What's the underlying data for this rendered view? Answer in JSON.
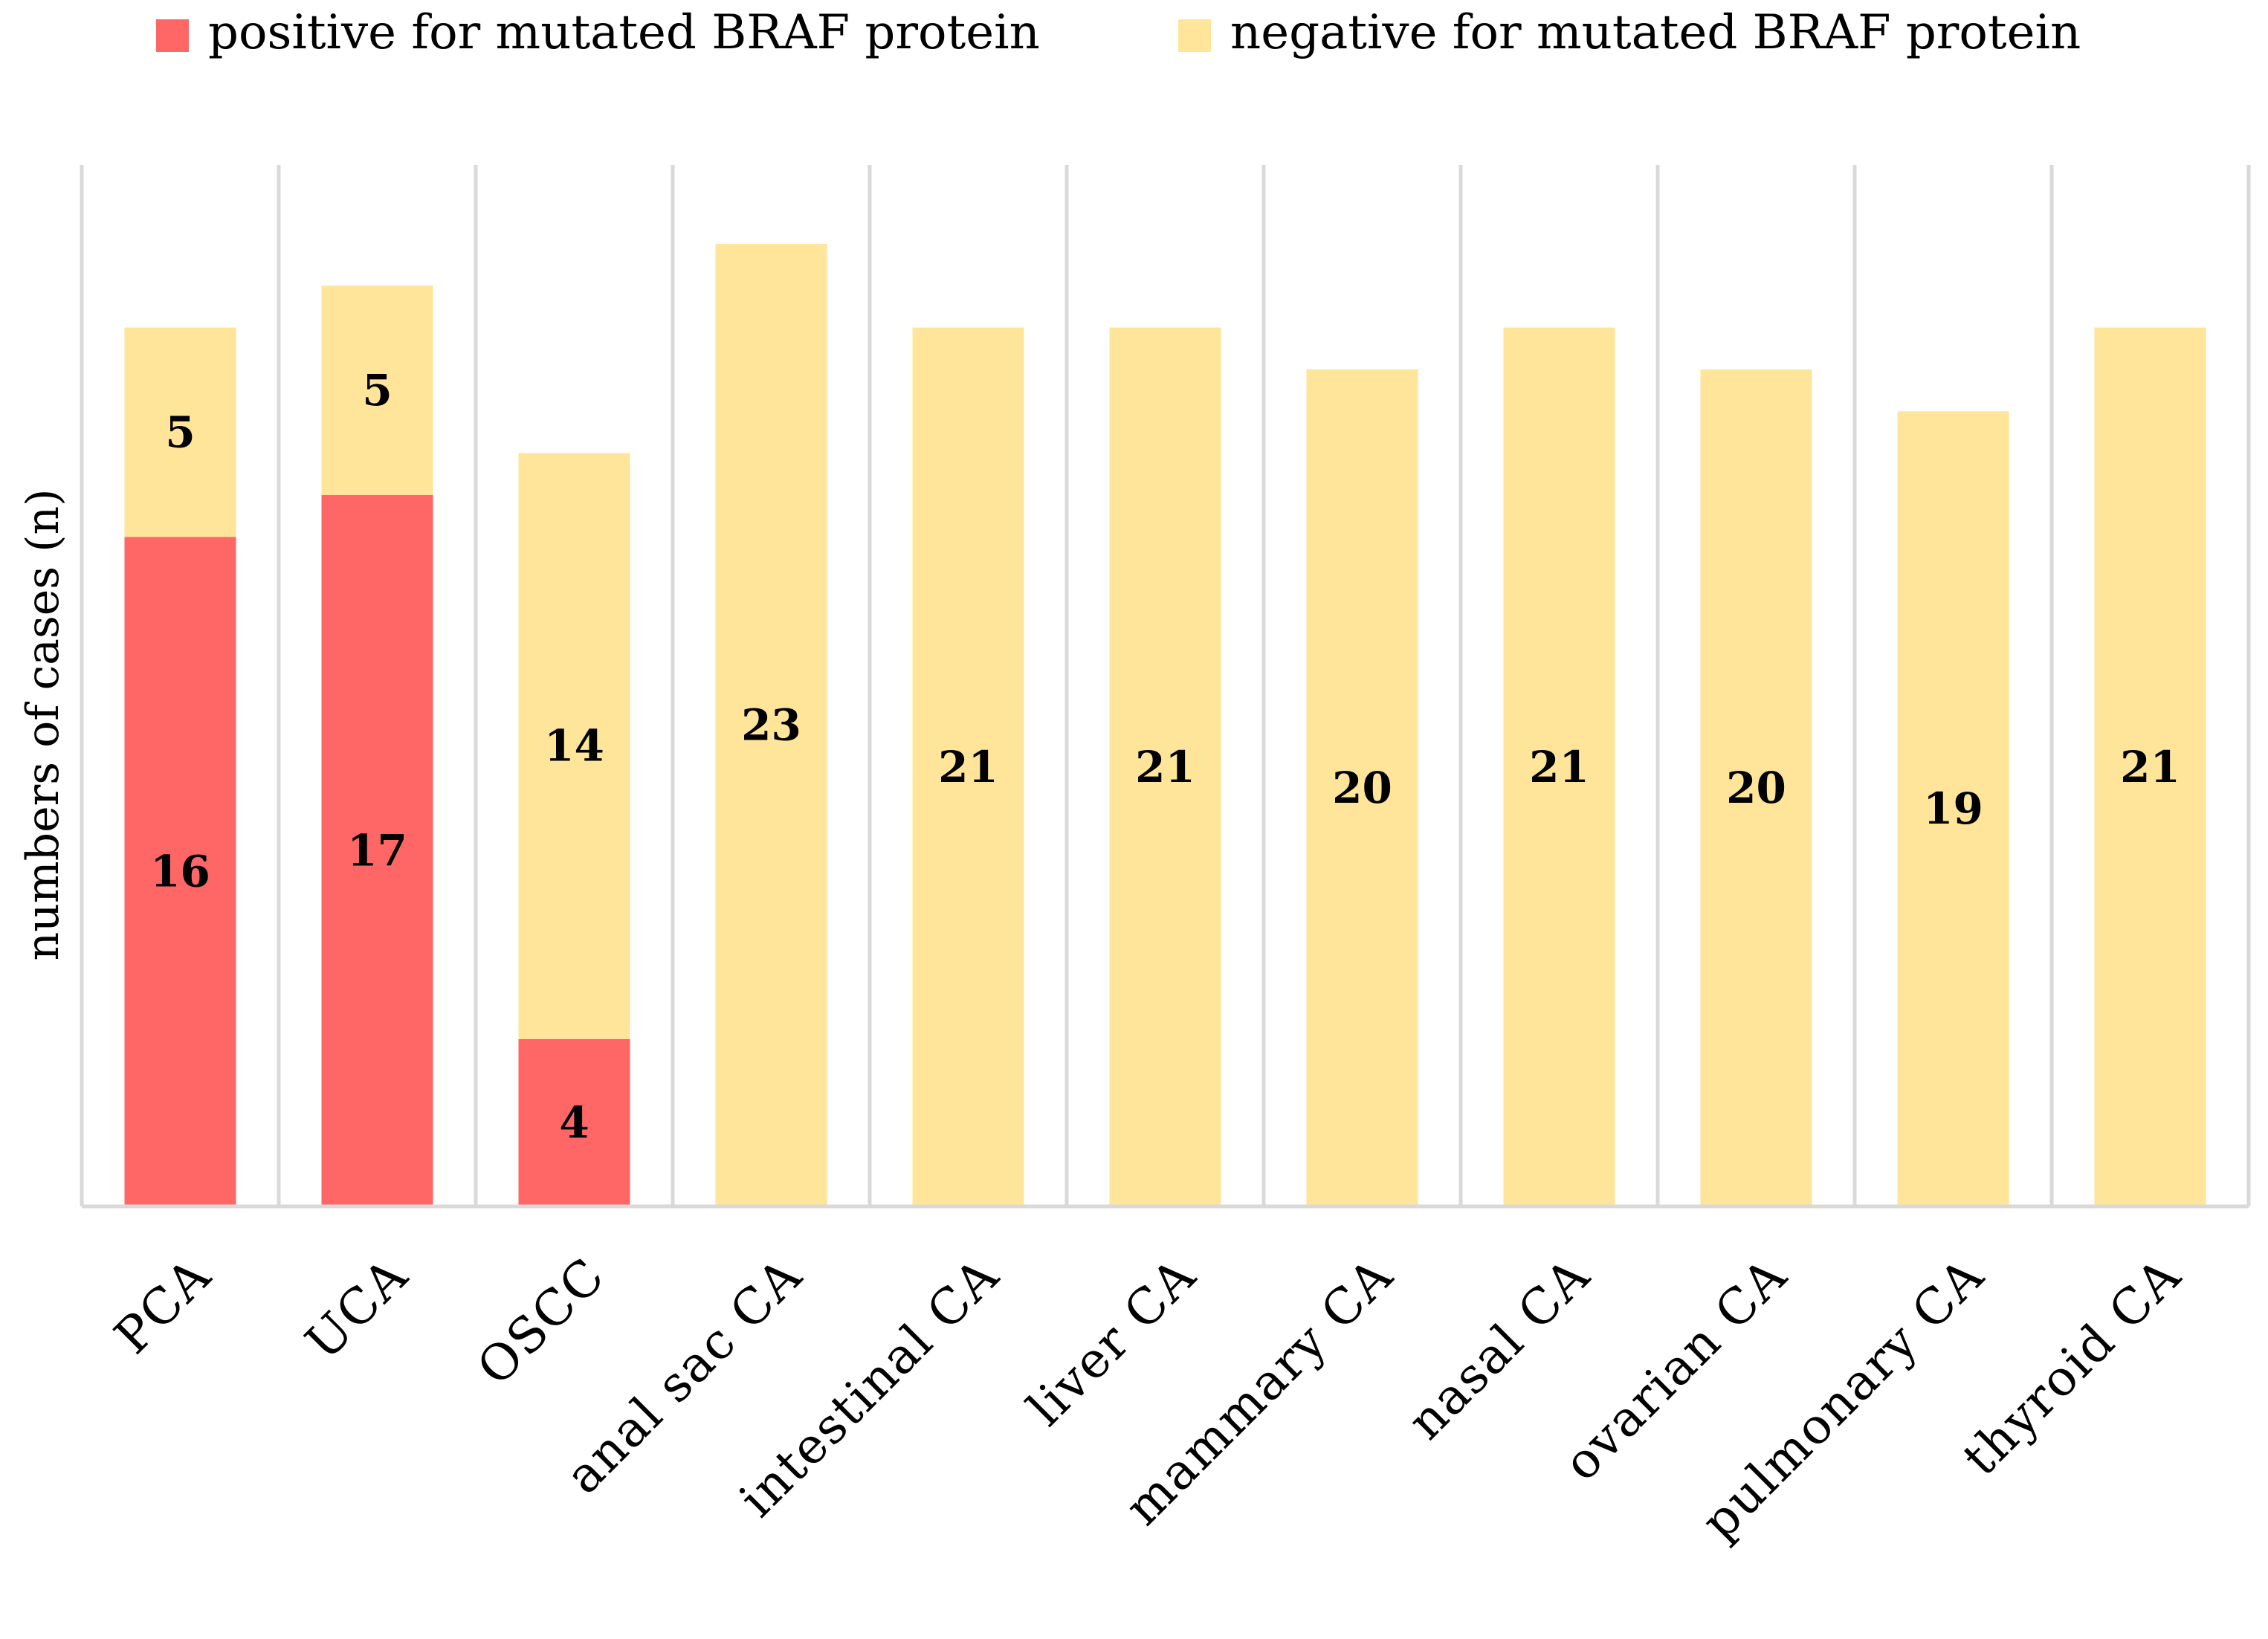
{
  "chart_data": {
    "type": "bar",
    "stacked": true,
    "title": "",
    "xlabel": "",
    "ylabel": "numbers of cases (n)",
    "ylim": [
      0,
      23
    ],
    "grid": "vertical separators between categories",
    "legend": "top",
    "categories": [
      "PCA",
      "UCA",
      "OSCC",
      "anal sac CA",
      "intestinal CA",
      "liver CA",
      "mammary CA",
      "nasal CA",
      "ovarian CA",
      "pulmonary CA",
      "thyroid CA"
    ],
    "series": [
      {
        "name": "positive for mutated BRAF protein",
        "color": "#ff6666",
        "values": [
          16,
          17,
          4,
          0,
          0,
          0,
          0,
          0,
          0,
          0,
          0
        ]
      },
      {
        "name": "negative for mutated BRAF protein",
        "color": "#fee599",
        "values": [
          5,
          5,
          14,
          23,
          21,
          21,
          20,
          21,
          20,
          19,
          21
        ]
      }
    ],
    "axis_color": "#d9d9d9"
  }
}
